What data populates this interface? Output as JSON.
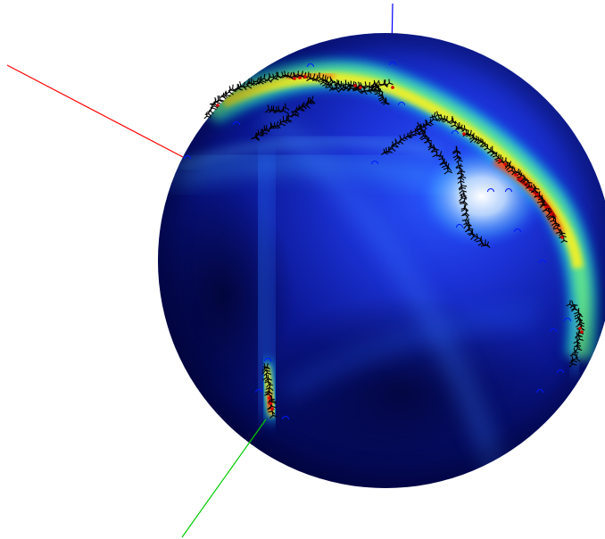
{
  "scene": {
    "background_color": "#ffffff",
    "colormap": "jet",
    "colormap_stops": [
      "#00008f",
      "#0000ff",
      "#0080ff",
      "#00ffff",
      "#80ff80",
      "#ffff00",
      "#ff8000",
      "#ff0000",
      "#800000"
    ],
    "surface": "sphere",
    "axes": [
      {
        "name": "x-axis",
        "color": "#ff0000"
      },
      {
        "name": "y-axis",
        "color": "#00cc00"
      },
      {
        "name": "z-axis",
        "color": "#0000ff"
      }
    ],
    "marker_styles": {
      "tripod_marker_color": "#000000",
      "dot_marker_color": "#d40000",
      "circle_marker_color": "#0018ff"
    }
  }
}
